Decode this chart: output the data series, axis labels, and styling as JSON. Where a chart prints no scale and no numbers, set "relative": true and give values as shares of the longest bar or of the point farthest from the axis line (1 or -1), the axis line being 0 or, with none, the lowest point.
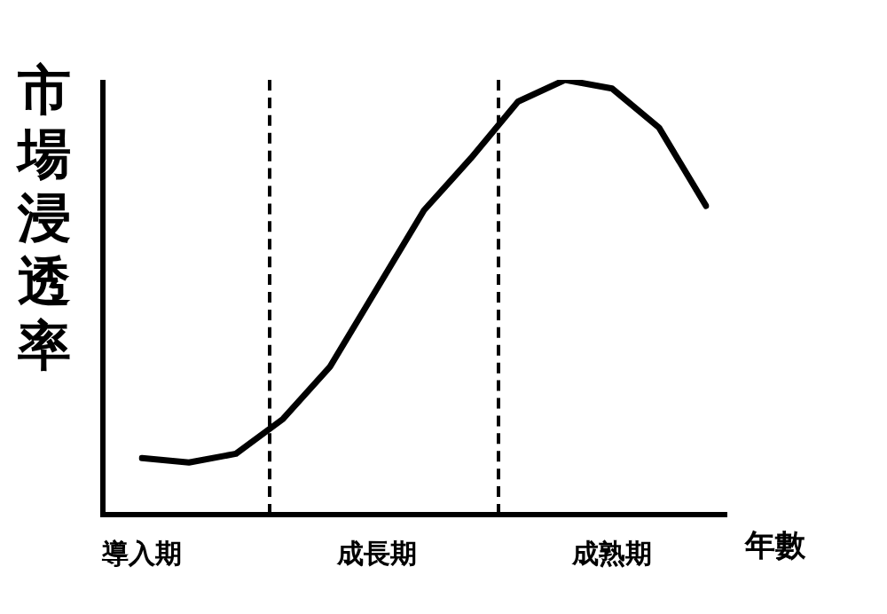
{
  "chart_data": {
    "type": "line",
    "ylabel": "市場浸透率",
    "xlabel": "年數",
    "relative": true,
    "marker": "none",
    "line_style": "solid",
    "categories": [
      "導入期",
      null,
      null,
      null,
      null,
      "成長期",
      null,
      null,
      null,
      null,
      "成熟期",
      null,
      null
    ],
    "series": [
      {
        "color": "#000000",
        "values": [
          0.13,
          0.12,
          0.14,
          0.22,
          0.34,
          0.52,
          0.7,
          0.82,
          0.95,
          1,
          0.98,
          0.89,
          0.71
        ]
      }
    ]
  }
}
